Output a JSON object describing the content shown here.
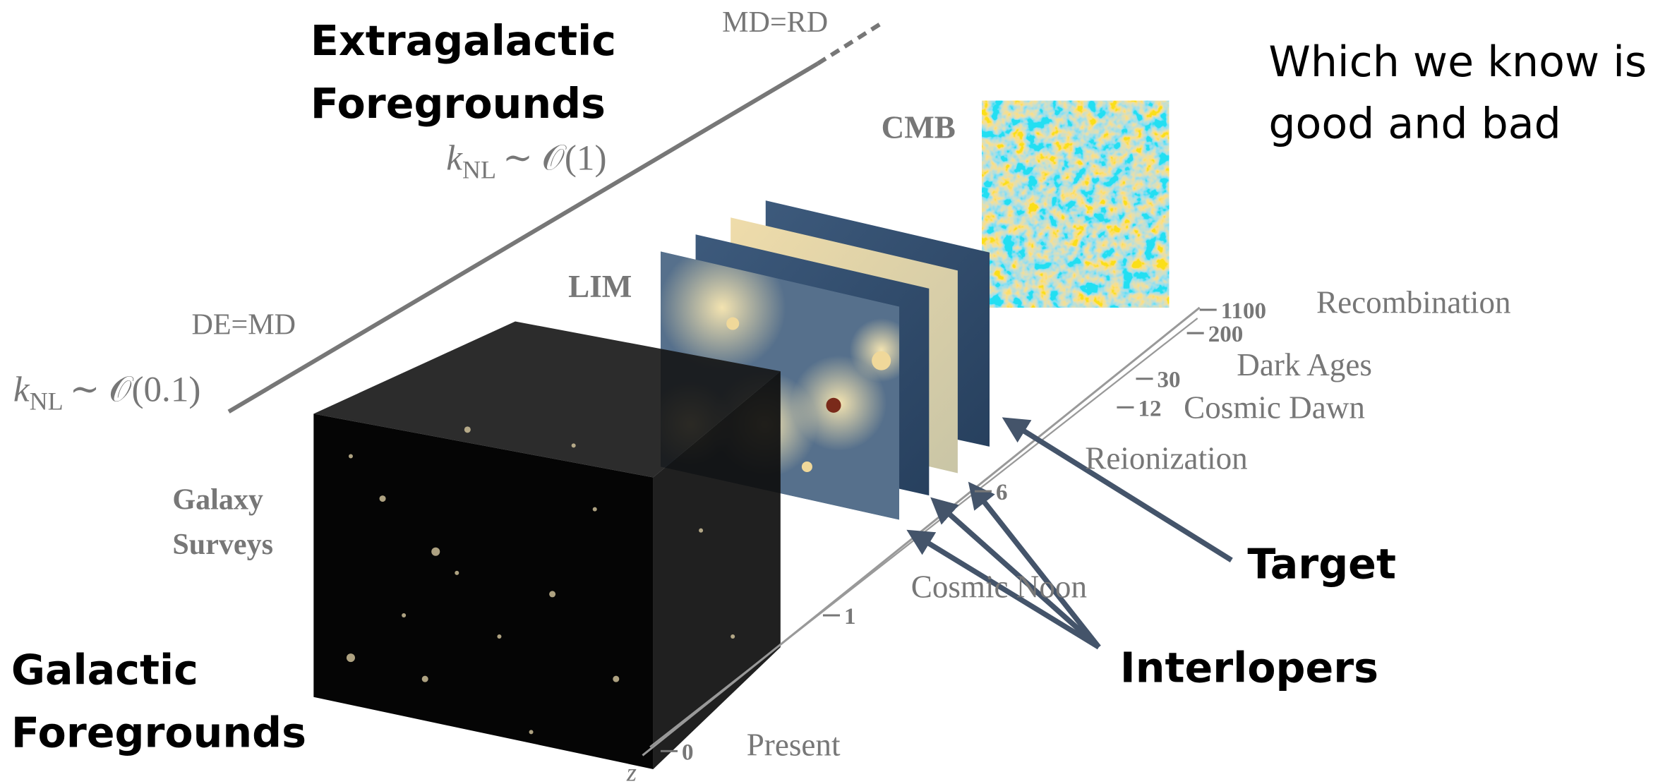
{
  "heading": {
    "lines": [
      "Which we know is",
      "good and bad"
    ]
  },
  "labels": {
    "md_rd": "MD=RD",
    "extragalactic": [
      "Extragalactic",
      "Foregrounds"
    ],
    "knl_1": {
      "k": "k",
      "sub": "NL",
      "rest": "∼ 𝒪(1)"
    },
    "de_md": "DE=MD",
    "knl_01": {
      "k": "k",
      "sub": "NL",
      "rest": "∼ 𝒪(0.1)"
    },
    "cmb": "CMB",
    "lim": "LIM",
    "galaxy_surveys": [
      "Galaxy",
      "Surveys"
    ],
    "galactic": [
      "Galactic",
      "Foregrounds"
    ],
    "target": "Target",
    "interlopers": "Interlopers"
  },
  "redshift_axis": {
    "label": "z",
    "ticks": [
      0,
      1,
      6,
      12,
      30,
      200,
      1100
    ],
    "epochs": [
      "Present",
      "Cosmic Noon",
      "Reionization",
      "Cosmic Dawn",
      "Dark Ages",
      "Recombination"
    ]
  }
}
